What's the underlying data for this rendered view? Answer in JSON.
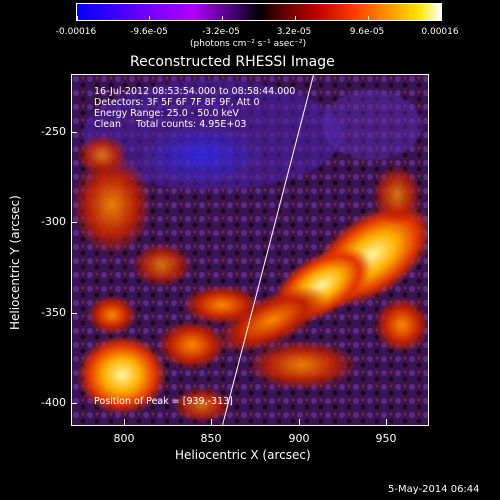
{
  "colorbar": {
    "ticks": [
      "-0.00016",
      "-9.6e-05",
      "-3.2e-05",
      "3.2e-05",
      "9.6e-05",
      "0.00016"
    ],
    "units": "(photons cm⁻² s⁻¹ asec⁻²)",
    "colors": {
      "low": "#0000ff",
      "mid": "#000000",
      "high": "#ffffff"
    }
  },
  "title": "Reconstructed RHESSI Image",
  "annotations": {
    "time_range": "16-Jul-2012 08:53:54.000 to 08:58:44.000",
    "detectors": "Detectors: 3F 5F 6F 7F 8F 9F, Att 0",
    "energy": "Energy Range: 25.0 - 50.0 keV",
    "clean": "Clean     Total counts: 4.95E+03",
    "peak": "Position of Peak = [939,-313]"
  },
  "axes": {
    "xlabel": "Heliocentric X (arcsec)",
    "ylabel": "Heliocentric Y (arcsec)",
    "xticks": [
      "800",
      "850",
      "900",
      "950"
    ],
    "yticks": [
      "-250",
      "-300",
      "-350",
      "-400"
    ]
  },
  "footer": {
    "date": "5-May-2014 06:44"
  }
}
